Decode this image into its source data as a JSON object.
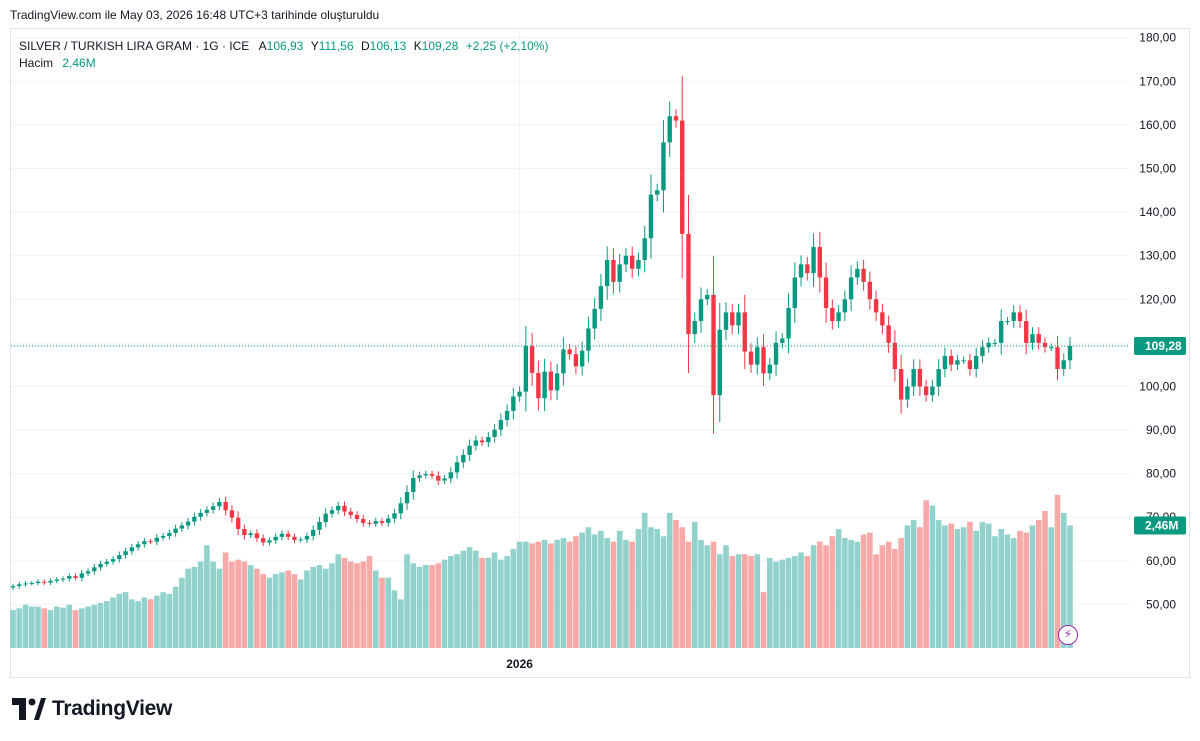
{
  "header": {
    "created_text": "TradingView.com ile May 03, 2026 16:48 UTC+3 tarihinde oluşturuldu"
  },
  "legend": {
    "symbol": "SILVER / TURKISH LIRA GRAM · 1G · ICE",
    "open_label": "A",
    "open_value": "106,93",
    "high_label": "Y",
    "high_value": "111,56",
    "low_label": "D",
    "low_value": "106,13",
    "close_label": "K",
    "close_value": "109,28",
    "change": "+2,25 (+2,10%)",
    "volume_label": "Hacim",
    "volume_value": "2,46M"
  },
  "logo": {
    "text": "TradingView"
  },
  "colors": {
    "up": "#089981",
    "down": "#f23645",
    "up_vol": "#92d2cc",
    "down_vol": "#f7a9a7",
    "grid": "#f0f3fa"
  },
  "chart_data": {
    "type": "candlestick",
    "y_axis_ticks": [
      "180,00",
      "170,00",
      "160,00",
      "150,00",
      "140,00",
      "130,00",
      "120,00",
      "110,00",
      "100,00",
      "90,00",
      "80,00",
      "70,00",
      "60,00",
      "50,00"
    ],
    "ylim": [
      40,
      182
    ],
    "x_axis_labels": [
      {
        "label": "2026",
        "index": 81
      }
    ],
    "last_price": 109.28,
    "last_price_label": "109,28",
    "last_volume_label": "2,46M",
    "grid": true,
    "close_series": [
      54.2,
      54.6,
      54.8,
      54.9,
      55.2,
      55.0,
      55.4,
      55.7,
      55.9,
      56.5,
      56.1,
      57.1,
      57.6,
      58.5,
      59.3,
      59.8,
      60.4,
      61.3,
      62.2,
      63.1,
      63.8,
      64.5,
      64.4,
      65.3,
      65.7,
      66.4,
      67.4,
      68.1,
      69.0,
      70.1,
      71.0,
      71.7,
      72.5,
      73.5,
      71.6,
      69.9,
      67.3,
      65.9,
      66.3,
      65.2,
      64.2,
      64.7,
      65.5,
      66.2,
      65.5,
      64.8,
      64.9,
      65.7,
      67.1,
      68.9,
      70.8,
      71.6,
      72.6,
      71.3,
      70.5,
      69.6,
      68.7,
      68.5,
      69.1,
      68.7,
      69.7,
      70.9,
      73.2,
      75.8,
      79.0,
      79.6,
      79.9,
      79.5,
      78.4,
      78.9,
      80.3,
      82.6,
      84.3,
      86.4,
      87.6,
      87.2,
      88.4,
      90.1,
      92.3,
      94.4,
      97.7,
      98.8,
      109.3,
      103.1,
      97.3,
      103.4,
      99.1,
      103.0,
      108.5,
      107.4,
      104.6,
      108.2,
      113.3,
      117.8,
      123.0,
      129.0,
      124.0,
      128.0,
      130.0,
      127.0,
      129.0,
      134.0,
      144.0,
      145.0,
      156.0,
      162.0,
      161.0,
      135.0,
      112.0,
      115.0,
      120.0,
      121.0,
      98.0,
      113.0,
      117.0,
      114.0,
      117.0,
      108.0,
      105.0,
      109.0,
      103.0,
      105.0,
      110.0,
      111.0,
      118.0,
      125.0,
      128.0,
      126.0,
      132.0,
      125.0,
      118.0,
      115.0,
      117.0,
      120.0,
      125.0,
      127.0,
      124.0,
      120.0,
      117.0,
      114.0,
      110.0,
      104.0,
      97.0,
      100.0,
      104.0,
      100.0,
      98.0,
      100.0,
      104.0,
      107.0,
      105.0,
      106.0,
      106.0,
      104.0,
      107.0,
      109.0,
      110.0,
      110.0,
      115.0,
      115.0,
      117.0,
      115.0,
      110.0,
      112.0,
      110.0,
      109.0,
      109.0,
      104.0,
      106.0,
      109.28
    ],
    "volume_series_millions": [
      1.05,
      1.1,
      1.2,
      1.15,
      1.15,
      1.1,
      1.05,
      1.15,
      1.12,
      1.2,
      1.05,
      1.1,
      1.15,
      1.2,
      1.25,
      1.3,
      1.4,
      1.5,
      1.55,
      1.35,
      1.3,
      1.4,
      1.35,
      1.45,
      1.55,
      1.5,
      1.7,
      1.95,
      2.2,
      2.25,
      2.4,
      2.85,
      2.4,
      2.2,
      2.65,
      2.4,
      2.45,
      2.4,
      2.3,
      2.2,
      2.05,
      1.95,
      2.05,
      2.1,
      2.15,
      2.05,
      1.9,
      2.15,
      2.25,
      2.3,
      2.2,
      2.35,
      2.6,
      2.5,
      2.4,
      2.35,
      2.4,
      2.55,
      2.15,
      1.95,
      1.95,
      1.6,
      1.35,
      2.6,
      2.35,
      2.25,
      2.3,
      2.3,
      2.35,
      2.45,
      2.55,
      2.6,
      2.7,
      2.8,
      2.7,
      2.5,
      2.5,
      2.65,
      2.45,
      2.55,
      2.75,
      2.95,
      2.95,
      2.9,
      2.95,
      3.0,
      2.9,
      3.0,
      3.05,
      2.95,
      3.1,
      3.2,
      3.35,
      3.15,
      3.25,
      3.05,
      2.95,
      3.25,
      3.0,
      2.95,
      3.3,
      3.75,
      3.35,
      3.3,
      3.1,
      3.75,
      3.55,
      3.35,
      2.95,
      3.5,
      3.0,
      2.85,
      2.95,
      2.6,
      2.85,
      2.55,
      2.6,
      2.6,
      2.55,
      2.6,
      1.55,
      2.5,
      2.4,
      2.45,
      2.5,
      2.55,
      2.65,
      2.55,
      2.85,
      2.95,
      2.85,
      3.1,
      3.3,
      3.05,
      3.0,
      2.95,
      3.15,
      3.2,
      2.6,
      2.85,
      2.95,
      2.75,
      3.05,
      3.4,
      3.55,
      3.35,
      4.1,
      3.95,
      3.55,
      3.4,
      3.45,
      3.3,
      3.35,
      3.5,
      3.25,
      3.5,
      3.45,
      3.1,
      3.3,
      3.15,
      3.05,
      3.25,
      3.2,
      3.4,
      3.55,
      3.8,
      3.35,
      4.25,
      3.75,
      3.4,
      3.45,
      3.35,
      3.35,
      2.46
    ]
  }
}
